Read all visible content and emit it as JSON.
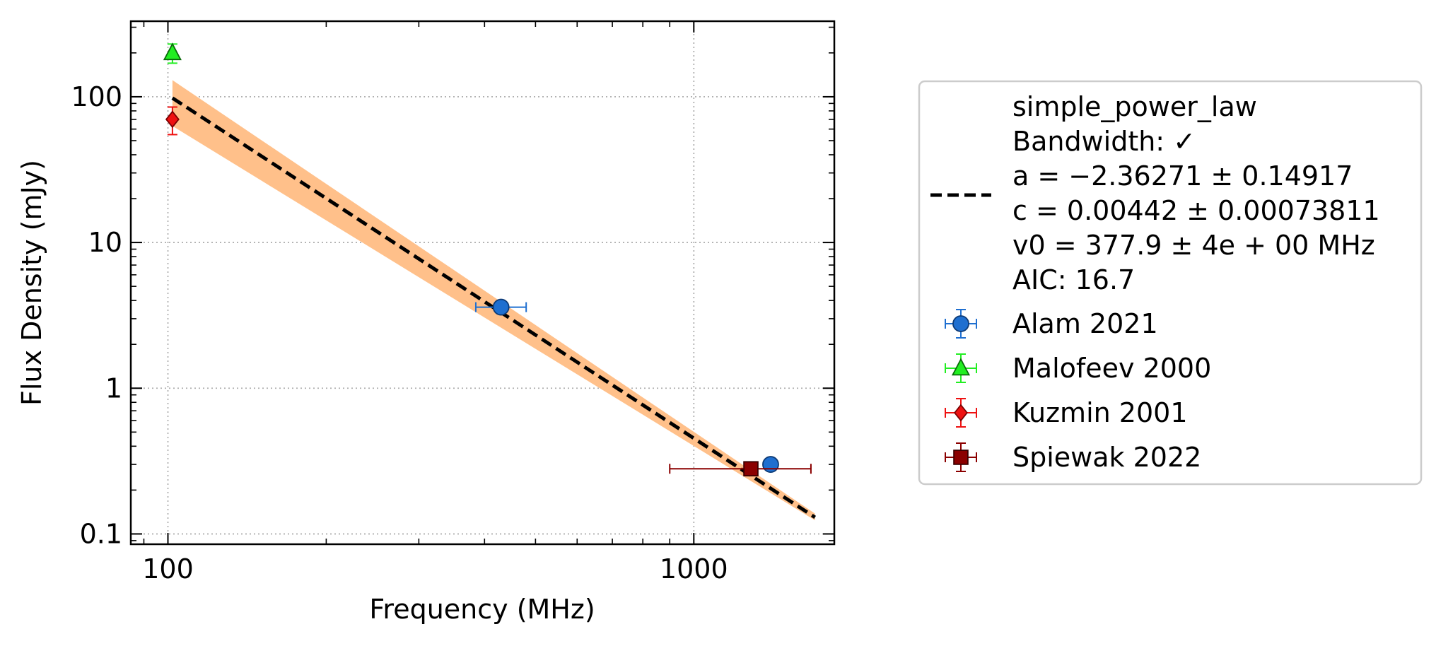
{
  "chart_data": {
    "type": "scatter",
    "title": "",
    "xlabel": "Frequency (MHz)",
    "ylabel": "Flux Density (mJy)",
    "xscale": "log",
    "yscale": "log",
    "xlim": [
      85,
      1850
    ],
    "ylim": [
      0.085,
      330
    ],
    "x_ticks": [
      {
        "value": 100,
        "label": "100"
      },
      {
        "value": 1000,
        "label": "1000"
      }
    ],
    "y_ticks": [
      {
        "value": 0.1,
        "label": "0.1"
      },
      {
        "value": 1,
        "label": "1"
      },
      {
        "value": 10,
        "label": "10"
      },
      {
        "value": 100,
        "label": "100"
      }
    ],
    "grid": true,
    "legend_position": "outside-right",
    "fit": {
      "model": "simple_power_law",
      "legend_lines": [
        "simple_power_law",
        "Bandwidth: ✓",
        "a = −2.36271 ± 0.14917",
        "c = 0.00442 ± 0.00073811",
        "v0 = 377.9 ± 4e + 00 MHz",
        "AIC: 16.7"
      ],
      "x": [
        102,
        1700
      ],
      "y": [
        98,
        0.13
      ],
      "band_upper": [
        130,
        0.138
      ],
      "band_lower": [
        63,
        0.124
      ],
      "line_color": "#000000",
      "band_color": "#ffc08a"
    },
    "series": [
      {
        "name": "Alam 2021",
        "marker": "circle",
        "color": "#1f6fd0",
        "edge": "#0d3a75",
        "points": [
          {
            "x": 430,
            "y": 3.6,
            "xerr": [
              45,
              50
            ],
            "yerr": [
              0.25,
              0.25
            ]
          },
          {
            "x": 1400,
            "y": 0.3,
            "xerr": [
              0,
              0
            ],
            "yerr": [
              0.02,
              0.02
            ]
          }
        ]
      },
      {
        "name": "Malofeev 2000",
        "marker": "triangle",
        "color": "#22ee22",
        "edge": "#0a6a0a",
        "points": [
          {
            "x": 102,
            "y": 200,
            "xerr": [
              0,
              0
            ],
            "yerr": [
              30,
              30
            ]
          }
        ]
      },
      {
        "name": "Kuzmin 2001",
        "marker": "diamond",
        "color": "#ee1111",
        "edge": "#7a0000",
        "points": [
          {
            "x": 102,
            "y": 70,
            "xerr": [
              0,
              0
            ],
            "yerr": [
              15,
              15
            ]
          }
        ]
      },
      {
        "name": "Spiewak 2022",
        "marker": "square",
        "color": "#8b0000",
        "edge": "#3a0000",
        "points": [
          {
            "x": 1284,
            "y": 0.28,
            "xerr": [
              384,
              386
            ],
            "yerr": [
              0,
              0
            ]
          }
        ]
      }
    ]
  }
}
